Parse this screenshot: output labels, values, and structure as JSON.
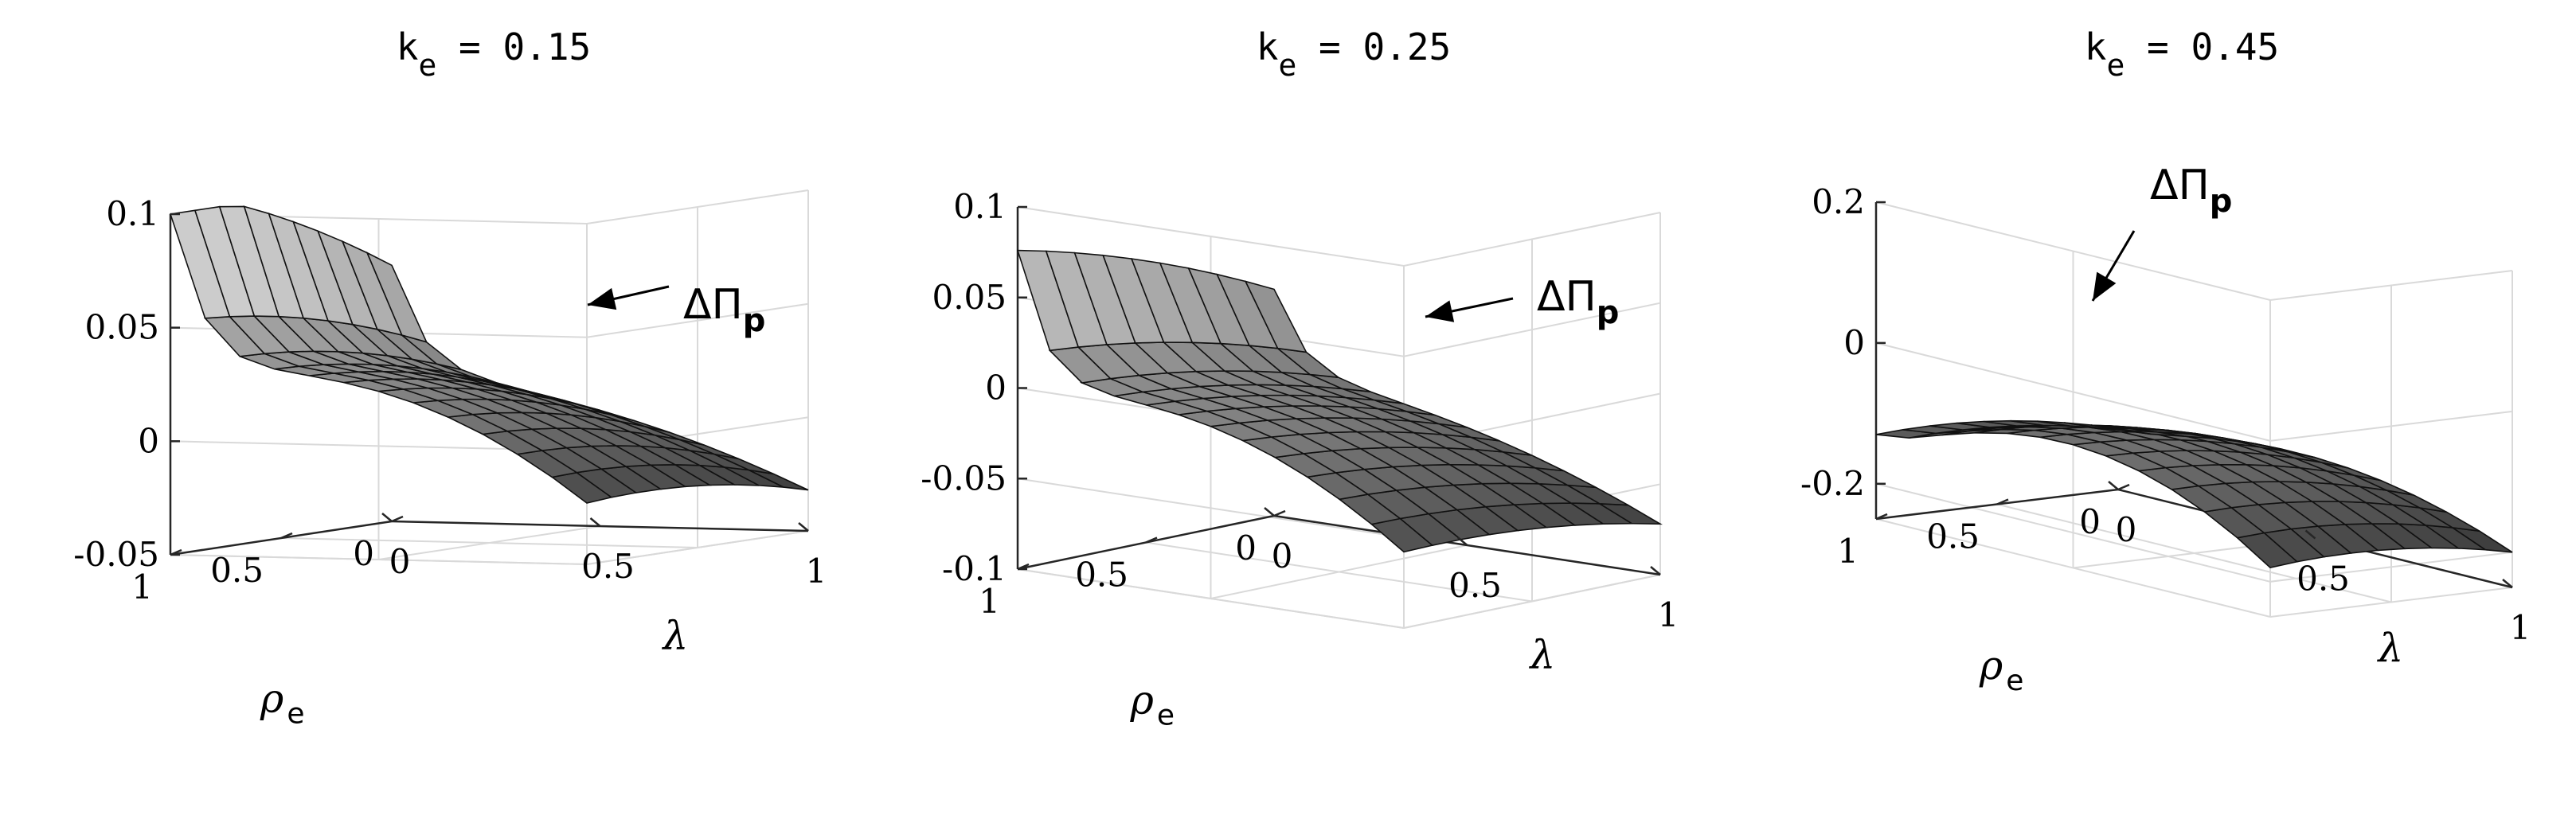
{
  "chart_data": [
    {
      "type": "surface",
      "title": "k e = 0.15",
      "title_parts": {
        "k": "k",
        "sub": "e",
        "rest": " = 0.15"
      },
      "xlabel": "λ",
      "ylabel": {
        "main": "ρ",
        "sub": "e"
      },
      "xlim": [
        0,
        1
      ],
      "ylim": [
        0,
        1
      ],
      "zlim": [
        -0.05,
        0.1
      ],
      "x_ticks": [
        "0",
        "0.5",
        "1"
      ],
      "y_ticks": [
        "0",
        "0.5",
        "1"
      ],
      "z_ticks": [
        -0.05,
        0,
        0.05,
        0.1
      ],
      "z_tick_labels": [
        "-0.05",
        "0",
        "0.05",
        "0.1"
      ],
      "grid": true,
      "colormap": "gray",
      "surface_model": {
        "front_wall_top": 0.085,
        "front_wall_drop": 0.048,
        "rho_curve": 0.019,
        "lambda_bow": 0.035,
        "corner_far": -0.042,
        "corner_near": -0.032
      },
      "annotation": {
        "text": "ΔΠ",
        "sub": "p"
      }
    },
    {
      "type": "surface",
      "title": "k e = 0.25",
      "title_parts": {
        "k": "k",
        "sub": "e",
        "rest": " = 0.25"
      },
      "xlabel": "λ",
      "ylabel": {
        "main": "ρ",
        "sub": "e"
      },
      "xlim": [
        0,
        1
      ],
      "ylim": [
        0,
        1
      ],
      "zlim": [
        -0.1,
        0.1
      ],
      "x_ticks": [
        "0",
        "0.5",
        "1"
      ],
      "y_ticks": [
        "0",
        "0.5",
        "1"
      ],
      "z_ticks": [
        -0.1,
        -0.05,
        0,
        0.05,
        0.1
      ],
      "z_tick_labels": [
        "-0.1",
        "-0.05",
        "0",
        "0.05",
        "0.1"
      ],
      "grid": true,
      "colormap": "gray",
      "surface_model": {
        "front_wall_top": 0.082,
        "front_wall_drop": 0.052,
        "rho_curve": 0.02,
        "lambda_bow": 0.04,
        "corner_far": -0.078,
        "corner_near": -0.072
      },
      "annotation": {
        "text": "ΔΠ",
        "sub": "p"
      }
    },
    {
      "type": "surface",
      "title": "k e = 0.45",
      "title_parts": {
        "k": "k",
        "sub": "e",
        "rest": " = 0.45"
      },
      "xlabel": "λ",
      "ylabel": {
        "main": "ρ",
        "sub": "e"
      },
      "xlim": [
        0,
        1
      ],
      "ylim": [
        0,
        1
      ],
      "zlim": [
        -0.25,
        0.2
      ],
      "x_ticks": [
        "0",
        "0.5",
        "1"
      ],
      "y_ticks": [
        "0",
        "0.5",
        "1"
      ],
      "z_ticks": [
        -0.2,
        0,
        0.2
      ],
      "z_tick_labels": [
        "-0.2",
        "0",
        "0.2"
      ],
      "grid": true,
      "colormap": "gray",
      "surface_model": {
        "front_wall_top": 0.03,
        "front_wall_drop": 0.02,
        "rho_curve": 0.06,
        "lambda_bow": 0.1,
        "corner_far": -0.24,
        "corner_near": -0.2
      },
      "annotation": {
        "text": "ΔΠ",
        "sub": "p"
      }
    }
  ]
}
